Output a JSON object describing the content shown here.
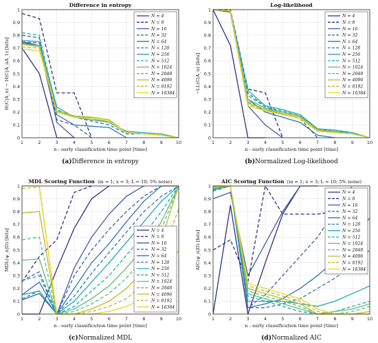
{
  "figure": {
    "caption_label_font": "serif"
  },
  "chart_data": [
    {
      "id": "a",
      "type": "line",
      "title": "Difference in entropy",
      "xlabel": "n - early classification time point [time]",
      "ylabel": "H(C|A_n) − H(C|A_nA_1) [bits]",
      "xlim": [
        1,
        10
      ],
      "ylim": [
        0,
        1
      ],
      "xticks": [
        1,
        2,
        3,
        4,
        5,
        6,
        7,
        8,
        9,
        10
      ],
      "yticks": [
        0,
        0.1,
        0.2,
        0.3,
        0.4,
        0.5,
        0.6,
        0.7,
        0.8,
        0.9,
        1
      ],
      "grid": true,
      "legend_position": "top-right",
      "x": [
        1,
        2,
        3,
        4,
        5,
        6,
        7,
        8,
        9,
        10
      ],
      "series": [
        {
          "name": "N = 4",
          "values": [
            0.7,
            0.5,
            0.0,
            0.0,
            null,
            null,
            null,
            null,
            null,
            null
          ]
        },
        {
          "name": "N = 8",
          "values": [
            0.97,
            0.93,
            0.35,
            0.35,
            0.0,
            null,
            null,
            null,
            null,
            null
          ]
        },
        {
          "name": "N = 16",
          "values": [
            0.75,
            0.72,
            0.12,
            0.0,
            null,
            null,
            null,
            null,
            null,
            null
          ]
        },
        {
          "name": "N = 32",
          "values": [
            0.8,
            0.78,
            0.14,
            0.1,
            0.0,
            null,
            null,
            null,
            null,
            null
          ]
        },
        {
          "name": "N = 64",
          "values": [
            0.74,
            0.72,
            0.18,
            0.1,
            0.09,
            0.08,
            0.0,
            null,
            null,
            null
          ]
        },
        {
          "name": "N = 128",
          "values": [
            0.75,
            0.74,
            0.22,
            0.16,
            0.13,
            0.1,
            0.03,
            0.03,
            0.02,
            0.0
          ]
        },
        {
          "name": "N = 256",
          "values": [
            0.76,
            0.75,
            0.24,
            0.16,
            0.15,
            0.12,
            0.05,
            0.04,
            0.03,
            0.0
          ]
        },
        {
          "name": "N = 512",
          "values": [
            0.82,
            0.8,
            0.21,
            0.17,
            0.15,
            0.12,
            0.04,
            0.03,
            0.02,
            0.0
          ]
        },
        {
          "name": "N = 1024",
          "values": [
            0.73,
            0.72,
            0.2,
            0.16,
            0.14,
            0.12,
            0.04,
            0.03,
            0.02,
            0.0
          ]
        },
        {
          "name": "N = 2048",
          "values": [
            0.73,
            0.72,
            0.2,
            0.17,
            0.16,
            0.14,
            0.04,
            0.03,
            0.02,
            0.0
          ]
        },
        {
          "name": "N = 4096",
          "values": [
            0.73,
            0.71,
            0.21,
            0.17,
            0.16,
            0.14,
            0.04,
            0.03,
            0.02,
            0.0
          ]
        },
        {
          "name": "N = 8192",
          "values": [
            0.71,
            0.7,
            0.21,
            0.17,
            0.16,
            0.14,
            0.04,
            0.03,
            0.02,
            0.0
          ]
        },
        {
          "name": "N = 16384",
          "values": [
            0.69,
            0.68,
            0.2,
            0.16,
            0.15,
            0.13,
            0.04,
            0.03,
            0.02,
            0.0
          ]
        }
      ],
      "caption_letter": "(a)",
      "caption_text": "Difference in entropy"
    },
    {
      "id": "b",
      "type": "line",
      "title": "Log-likelihood",
      "xlabel": "n - early classification time point [time]",
      "ylabel": "−LL(C|A_n) [bits]",
      "xlim": [
        1,
        10
      ],
      "ylim": [
        0,
        1
      ],
      "xticks": [
        1,
        2,
        3,
        4,
        5,
        6,
        7,
        8,
        9,
        10
      ],
      "yticks": [
        0,
        0.1,
        0.2,
        0.3,
        0.4,
        0.5,
        0.6,
        0.7,
        0.8,
        0.9,
        1
      ],
      "grid": true,
      "legend_position": "top-right",
      "x": [
        1,
        2,
        3,
        4,
        5,
        6,
        7,
        8,
        9,
        10
      ],
      "series": [
        {
          "name": "N = 4",
          "values": [
            1.0,
            0.72,
            0.0,
            0.0,
            null,
            null,
            null,
            null,
            null,
            null
          ]
        },
        {
          "name": "N = 8",
          "values": [
            1.0,
            1.0,
            0.38,
            0.35,
            0.0,
            null,
            null,
            null,
            null,
            null
          ]
        },
        {
          "name": "N = 16",
          "values": [
            1.0,
            0.98,
            0.25,
            0.1,
            0.0,
            null,
            null,
            null,
            null,
            null
          ]
        },
        {
          "name": "N = 32",
          "values": [
            1.0,
            0.99,
            0.28,
            0.22,
            0.18,
            0.15,
            0.0,
            null,
            null,
            null
          ]
        },
        {
          "name": "N = 64",
          "values": [
            1.0,
            0.99,
            0.3,
            0.2,
            0.16,
            0.12,
            0.02,
            0.0,
            null,
            null
          ]
        },
        {
          "name": "N = 128",
          "values": [
            1.0,
            0.99,
            0.35,
            0.24,
            0.2,
            0.17,
            0.07,
            0.05,
            0.04,
            0.0
          ]
        },
        {
          "name": "N = 256",
          "values": [
            1.0,
            0.99,
            0.37,
            0.25,
            0.22,
            0.18,
            0.07,
            0.06,
            0.04,
            0.0
          ]
        },
        {
          "name": "N = 512",
          "values": [
            1.0,
            0.99,
            0.33,
            0.24,
            0.21,
            0.17,
            0.06,
            0.05,
            0.03,
            0.0
          ]
        },
        {
          "name": "N = 1024",
          "values": [
            1.0,
            0.99,
            0.3,
            0.23,
            0.2,
            0.17,
            0.06,
            0.05,
            0.03,
            0.0
          ]
        },
        {
          "name": "N = 2048",
          "values": [
            1.0,
            0.99,
            0.28,
            0.22,
            0.2,
            0.17,
            0.06,
            0.04,
            0.03,
            0.0
          ]
        },
        {
          "name": "N = 4096",
          "values": [
            1.0,
            0.99,
            0.27,
            0.22,
            0.19,
            0.16,
            0.06,
            0.04,
            0.03,
            0.0
          ]
        },
        {
          "name": "N = 8192",
          "values": [
            1.0,
            0.99,
            0.26,
            0.21,
            0.19,
            0.16,
            0.05,
            0.04,
            0.03,
            0.0
          ]
        },
        {
          "name": "N = 16384",
          "values": [
            1.0,
            0.99,
            0.25,
            0.21,
            0.18,
            0.15,
            0.05,
            0.04,
            0.03,
            0.0
          ]
        }
      ],
      "caption_letter": "(b)",
      "caption_text": "Normalized Log-likelihood"
    },
    {
      "id": "c",
      "type": "line",
      "title": "MDL Scoring Function",
      "subtitle": "(m = 1; x = 3; L = 10; 5% noise)",
      "xlabel": "n - early classification time point [time]",
      "ylabel": "MDL(ψ_n|D) [bits]",
      "xlim": [
        1,
        10
      ],
      "ylim": [
        0,
        1
      ],
      "xticks": [
        1,
        2,
        3,
        4,
        5,
        6,
        7,
        8,
        9,
        10
      ],
      "yticks": [
        0,
        0.1,
        0.2,
        0.3,
        0.4,
        0.5,
        0.6,
        0.7,
        0.8,
        0.9,
        1
      ],
      "grid": true,
      "legend_position": "bottom-right",
      "x": [
        1,
        2,
        3,
        4,
        5,
        6,
        7,
        8,
        9,
        10
      ],
      "series": [
        {
          "name": "N = 4",
          "values": [
            0.0,
            0.0,
            0.35,
            0.67,
            0.9,
            1.0,
            null,
            null,
            null,
            null
          ]
        },
        {
          "name": "N = 8",
          "values": [
            0.25,
            0.45,
            0.58,
            0.95,
            1.0,
            null,
            null,
            null,
            null,
            null
          ]
        },
        {
          "name": "N = 16",
          "values": [
            0.11,
            0.16,
            0.0,
            0.36,
            0.6,
            0.78,
            0.92,
            1.0,
            null,
            null
          ]
        },
        {
          "name": "N = 32",
          "values": [
            0.26,
            0.33,
            0.0,
            0.3,
            0.5,
            0.66,
            0.8,
            0.92,
            1.0,
            null
          ]
        },
        {
          "name": "N = 64",
          "values": [
            0.15,
            0.25,
            0.0,
            0.2,
            0.4,
            0.55,
            0.72,
            0.88,
            1.0,
            1.0
          ]
        },
        {
          "name": "N = 128",
          "values": [
            0.12,
            0.18,
            0.0,
            0.14,
            0.32,
            0.48,
            0.64,
            0.8,
            0.92,
            1.0
          ]
        },
        {
          "name": "N = 256",
          "values": [
            0.15,
            0.18,
            0.0,
            0.1,
            0.25,
            0.4,
            0.56,
            0.72,
            0.88,
            1.0
          ]
        },
        {
          "name": "N = 512",
          "values": [
            0.26,
            0.3,
            0.0,
            0.06,
            0.18,
            0.3,
            0.46,
            0.62,
            0.8,
            1.0
          ]
        },
        {
          "name": "N = 1024",
          "values": [
            0.42,
            0.43,
            0.0,
            0.04,
            0.12,
            0.22,
            0.36,
            0.52,
            0.72,
            1.0
          ]
        },
        {
          "name": "N = 2048",
          "values": [
            0.58,
            0.6,
            0.0,
            0.02,
            0.08,
            0.16,
            0.28,
            0.44,
            0.66,
            1.0
          ]
        },
        {
          "name": "N = 4096",
          "values": [
            0.79,
            0.8,
            0.0,
            0.0,
            0.04,
            0.1,
            0.2,
            0.34,
            0.58,
            1.0
          ]
        },
        {
          "name": "N = 8192",
          "values": [
            0.98,
            0.99,
            0.0,
            0.0,
            0.02,
            0.06,
            0.12,
            0.24,
            0.46,
            0.82
          ]
        },
        {
          "name": "N = 16384",
          "values": [
            1.0,
            1.0,
            0.0,
            0.0,
            0.0,
            0.02,
            0.06,
            0.12,
            0.26,
            0.5
          ]
        }
      ],
      "caption_letter": "(c)",
      "caption_text": "Normalized MDL"
    },
    {
      "id": "d",
      "type": "line",
      "title": "AIC Scoring Function",
      "subtitle": "(m = 1; x = 3; L = 10; 5% noise)",
      "xlabel": "n - early classification time point [time]",
      "ylabel": "AIC(ψ_n|D) [bits]",
      "xlim": [
        1,
        10
      ],
      "ylim": [
        0,
        1
      ],
      "xticks": [
        1,
        2,
        3,
        4,
        5,
        6,
        7,
        8,
        9,
        10
      ],
      "yticks": [
        0,
        0.1,
        0.2,
        0.3,
        0.4,
        0.5,
        0.6,
        0.7,
        0.8,
        0.9,
        1
      ],
      "grid": true,
      "legend_position": "top-right",
      "x": [
        1,
        2,
        3,
        4,
        5,
        6,
        7,
        8,
        9,
        10
      ],
      "series": [
        {
          "name": "N = 4",
          "values": [
            0.0,
            0.85,
            0.0,
            0.4,
            0.78,
            1.0,
            null,
            null,
            null,
            null
          ]
        },
        {
          "name": "N = 8",
          "values": [
            0.5,
            0.58,
            0.25,
            1.0,
            0.78,
            0.78,
            0.78,
            0.8,
            null,
            null
          ]
        },
        {
          "name": "N = 16",
          "values": [
            0.9,
            0.95,
            0.3,
            0.55,
            0.8,
            1.0,
            1.0,
            null,
            null,
            null
          ]
        },
        {
          "name": "N = 32",
          "values": [
            0.98,
            1.0,
            0.05,
            0.15,
            0.3,
            0.45,
            0.6,
            0.8,
            1.0,
            null
          ]
        },
        {
          "name": "N = 64",
          "values": [
            0.97,
            1.0,
            0.05,
            0.08,
            0.12,
            0.2,
            0.3,
            0.42,
            0.58,
            0.75
          ]
        },
        {
          "name": "N = 128",
          "values": [
            0.96,
            1.0,
            0.05,
            0.05,
            0.08,
            0.12,
            0.2,
            0.28,
            0.38,
            0.5
          ]
        },
        {
          "name": "N = 256",
          "values": [
            0.97,
            1.0,
            0.1,
            0.1,
            0.1,
            0.08,
            0.06,
            0.1,
            0.16,
            0.22
          ]
        },
        {
          "name": "N = 512",
          "values": [
            0.98,
            1.0,
            0.14,
            0.1,
            0.06,
            0.02,
            0.0,
            0.02,
            0.06,
            0.1
          ]
        },
        {
          "name": "N = 1024",
          "values": [
            0.98,
            1.0,
            0.16,
            0.12,
            0.08,
            0.04,
            0.0,
            0.02,
            0.04,
            0.08
          ]
        },
        {
          "name": "N = 2048",
          "values": [
            0.99,
            1.0,
            0.18,
            0.14,
            0.1,
            0.06,
            0.0,
            0.0,
            0.02,
            0.06
          ]
        },
        {
          "name": "N = 4096",
          "values": [
            0.99,
            1.0,
            0.2,
            0.16,
            0.12,
            0.08,
            0.0,
            0.0,
            0.0,
            0.02
          ]
        },
        {
          "name": "N = 8192",
          "values": [
            1.0,
            1.0,
            0.22,
            0.18,
            0.14,
            0.1,
            0.02,
            0.0,
            0.0,
            0.0
          ]
        },
        {
          "name": "N = 16384",
          "values": [
            1.0,
            1.0,
            0.24,
            0.2,
            0.16,
            0.12,
            0.04,
            0.0,
            0.0,
            0.0
          ]
        }
      ],
      "caption_letter": "(d)",
      "caption_text": "Normalized AIC"
    }
  ],
  "series_styles": [
    {
      "color": "#2b2d7e",
      "dash": ""
    },
    {
      "color": "#2b2d7e",
      "dash": "5,3"
    },
    {
      "color": "#3c5aa6",
      "dash": ""
    },
    {
      "color": "#3c5aa6",
      "dash": "5,3"
    },
    {
      "color": "#2d74b4",
      "dash": ""
    },
    {
      "color": "#2d74b4",
      "dash": "5,3"
    },
    {
      "color": "#20a8b8",
      "dash": ""
    },
    {
      "color": "#20a8b8",
      "dash": "5,3"
    },
    {
      "color": "#5cbf75",
      "dash": ""
    },
    {
      "color": "#5cbf75",
      "dash": "5,3"
    },
    {
      "color": "#c4b52c",
      "dash": ""
    },
    {
      "color": "#c4b52c",
      "dash": "5,3"
    },
    {
      "color": "#e6d81e",
      "dash": ""
    }
  ]
}
